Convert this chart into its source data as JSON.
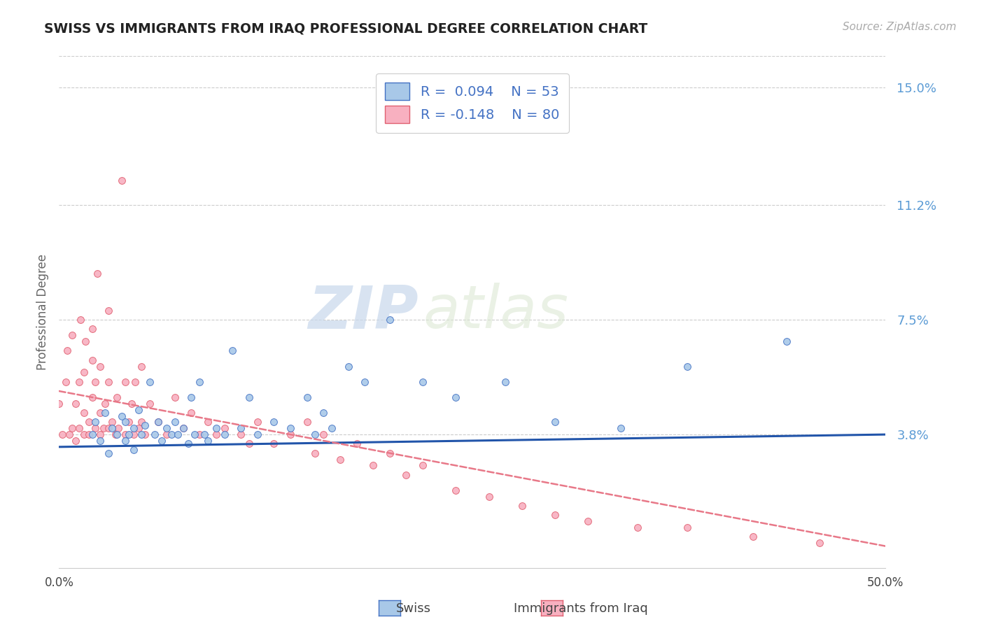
{
  "title": "SWISS VS IMMIGRANTS FROM IRAQ PROFESSIONAL DEGREE CORRELATION CHART",
  "source_text": "Source: ZipAtlas.com",
  "ylabel": "Professional Degree",
  "xlim": [
    0.0,
    0.5
  ],
  "ylim": [
    -0.005,
    0.16
  ],
  "ytick_vals": [
    0.038,
    0.075,
    0.112,
    0.15
  ],
  "ytick_labels": [
    "3.8%",
    "7.5%",
    "11.2%",
    "15.0%"
  ],
  "xtick_vals": [
    0.0,
    0.5
  ],
  "xtick_labels": [
    "0.0%",
    "50.0%"
  ],
  "swiss_color": "#a8c8e8",
  "swiss_edge_color": "#4472c4",
  "iraq_color": "#f8b0c0",
  "iraq_edge_color": "#e06070",
  "swiss_line_color": "#2255aa",
  "iraq_line_color": "#e87888",
  "background_color": "#ffffff",
  "grid_color": "#cccccc",
  "watermark_zip": "ZIP",
  "watermark_atlas": "atlas",
  "swiss_scatter_x": [
    0.02,
    0.022,
    0.025,
    0.028,
    0.03,
    0.032,
    0.035,
    0.038,
    0.04,
    0.04,
    0.042,
    0.045,
    0.045,
    0.048,
    0.05,
    0.052,
    0.055,
    0.058,
    0.06,
    0.062,
    0.065,
    0.068,
    0.07,
    0.072,
    0.075,
    0.078,
    0.08,
    0.082,
    0.085,
    0.088,
    0.09,
    0.095,
    0.1,
    0.105,
    0.11,
    0.115,
    0.12,
    0.13,
    0.14,
    0.15,
    0.155,
    0.16,
    0.165,
    0.175,
    0.185,
    0.2,
    0.22,
    0.24,
    0.27,
    0.3,
    0.34,
    0.38,
    0.44
  ],
  "swiss_scatter_y": [
    0.038,
    0.042,
    0.036,
    0.045,
    0.032,
    0.04,
    0.038,
    0.044,
    0.036,
    0.042,
    0.038,
    0.033,
    0.04,
    0.046,
    0.038,
    0.041,
    0.055,
    0.038,
    0.042,
    0.036,
    0.04,
    0.038,
    0.042,
    0.038,
    0.04,
    0.035,
    0.05,
    0.038,
    0.055,
    0.038,
    0.036,
    0.04,
    0.038,
    0.065,
    0.04,
    0.05,
    0.038,
    0.042,
    0.04,
    0.05,
    0.038,
    0.045,
    0.04,
    0.06,
    0.055,
    0.075,
    0.055,
    0.05,
    0.055,
    0.042,
    0.04,
    0.06,
    0.068
  ],
  "iraq_scatter_x": [
    0.0,
    0.002,
    0.004,
    0.005,
    0.006,
    0.008,
    0.008,
    0.01,
    0.01,
    0.012,
    0.012,
    0.013,
    0.015,
    0.015,
    0.015,
    0.016,
    0.018,
    0.018,
    0.02,
    0.02,
    0.02,
    0.022,
    0.022,
    0.023,
    0.025,
    0.025,
    0.025,
    0.027,
    0.028,
    0.03,
    0.03,
    0.03,
    0.032,
    0.034,
    0.035,
    0.036,
    0.038,
    0.04,
    0.04,
    0.042,
    0.044,
    0.045,
    0.046,
    0.048,
    0.05,
    0.05,
    0.052,
    0.055,
    0.06,
    0.065,
    0.07,
    0.075,
    0.08,
    0.085,
    0.09,
    0.095,
    0.1,
    0.11,
    0.115,
    0.12,
    0.13,
    0.14,
    0.15,
    0.155,
    0.16,
    0.17,
    0.18,
    0.19,
    0.2,
    0.21,
    0.22,
    0.24,
    0.26,
    0.28,
    0.3,
    0.32,
    0.35,
    0.38,
    0.42,
    0.46
  ],
  "iraq_scatter_y": [
    0.048,
    0.038,
    0.055,
    0.065,
    0.038,
    0.04,
    0.07,
    0.048,
    0.036,
    0.04,
    0.055,
    0.075,
    0.045,
    0.058,
    0.038,
    0.068,
    0.042,
    0.038,
    0.05,
    0.062,
    0.072,
    0.04,
    0.055,
    0.09,
    0.038,
    0.045,
    0.06,
    0.04,
    0.048,
    0.04,
    0.055,
    0.078,
    0.042,
    0.038,
    0.05,
    0.04,
    0.12,
    0.055,
    0.038,
    0.042,
    0.048,
    0.038,
    0.055,
    0.04,
    0.042,
    0.06,
    0.038,
    0.048,
    0.042,
    0.038,
    0.05,
    0.04,
    0.045,
    0.038,
    0.042,
    0.038,
    0.04,
    0.038,
    0.035,
    0.042,
    0.035,
    0.038,
    0.042,
    0.032,
    0.038,
    0.03,
    0.035,
    0.028,
    0.032,
    0.025,
    0.028,
    0.02,
    0.018,
    0.015,
    0.012,
    0.01,
    0.008,
    0.008,
    0.005,
    0.003
  ],
  "swiss_trend_x": [
    0.0,
    0.5
  ],
  "swiss_trend_y": [
    0.034,
    0.038
  ],
  "iraq_trend_x": [
    0.0,
    0.5
  ],
  "iraq_trend_y": [
    0.052,
    0.002
  ]
}
